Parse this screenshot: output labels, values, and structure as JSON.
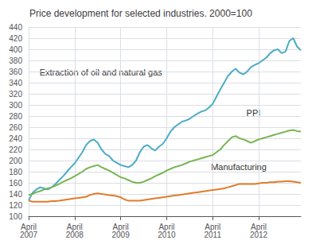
{
  "chart_data": {
    "type": "line",
    "title": "Price development for selected industries. 2000=100",
    "categories": [
      "April\n2007",
      null,
      null,
      null,
      null,
      null,
      null,
      null,
      null,
      null,
      null,
      null,
      "April\n2008",
      null,
      null,
      null,
      null,
      null,
      null,
      null,
      null,
      null,
      null,
      null,
      "April\n2009",
      null,
      null,
      null,
      null,
      null,
      null,
      null,
      null,
      null,
      null,
      null,
      "April\n2010",
      null,
      null,
      null,
      null,
      null,
      null,
      null,
      null,
      null,
      null,
      null,
      "April\n2011",
      null,
      null,
      null,
      null,
      null,
      null,
      null,
      null,
      null,
      null,
      null,
      "April\n2012",
      null,
      null,
      null,
      null,
      null,
      null,
      null,
      null,
      null,
      null,
      null
    ],
    "series": [
      {
        "name": "Extraction of oil and natural gas",
        "color": "#4bacc6",
        "values": [
          128,
          142,
          148,
          152,
          150,
          148,
          152,
          158,
          165,
          172,
          180,
          188,
          195,
          205,
          215,
          228,
          235,
          238,
          232,
          220,
          212,
          208,
          200,
          196,
          192,
          190,
          188,
          192,
          200,
          215,
          225,
          228,
          222,
          218,
          225,
          230,
          240,
          252,
          260,
          265,
          270,
          272,
          275,
          280,
          284,
          288,
          290,
          295,
          302,
          315,
          328,
          340,
          352,
          360,
          365,
          358,
          355,
          360,
          368,
          372,
          375,
          380,
          385,
          393,
          398,
          400,
          393,
          396,
          415,
          420,
          405,
          398
        ]
      },
      {
        "name": "PPI",
        "color": "#77b552",
        "values": [
          138,
          140,
          143,
          145,
          148,
          150,
          152,
          155,
          158,
          162,
          165,
          168,
          172,
          176,
          180,
          185,
          188,
          190,
          192,
          188,
          185,
          182,
          178,
          174,
          170,
          168,
          165,
          162,
          160,
          160,
          162,
          165,
          168,
          172,
          175,
          178,
          182,
          185,
          188,
          190,
          192,
          195,
          198,
          200,
          202,
          204,
          206,
          208,
          210,
          215,
          220,
          228,
          235,
          242,
          244,
          240,
          238,
          235,
          232,
          235,
          238,
          240,
          242,
          244,
          246,
          248,
          250,
          252,
          254,
          255,
          253,
          252
        ]
      },
      {
        "name": "Manufacturing",
        "color": "#e07c2b",
        "values": [
          128,
          126,
          126,
          126,
          126,
          126,
          127,
          127,
          128,
          129,
          130,
          131,
          132,
          133,
          134,
          135,
          138,
          140,
          141,
          140,
          139,
          138,
          137,
          136,
          134,
          130,
          128,
          128,
          128,
          128,
          129,
          130,
          131,
          132,
          133,
          134,
          135,
          136,
          137,
          138,
          139,
          140,
          141,
          142,
          143,
          144,
          145,
          146,
          147,
          148,
          149,
          150,
          152,
          154,
          156,
          158,
          158,
          158,
          158,
          158,
          159,
          160,
          160,
          161,
          161,
          162,
          162,
          163,
          163,
          162,
          161,
          160
        ]
      }
    ],
    "ylim": [
      100,
      440
    ],
    "yticks": [
      100,
      120,
      140,
      160,
      180,
      200,
      220,
      240,
      260,
      280,
      300,
      320,
      340,
      360,
      380,
      400,
      420,
      440
    ],
    "grid": true
  }
}
